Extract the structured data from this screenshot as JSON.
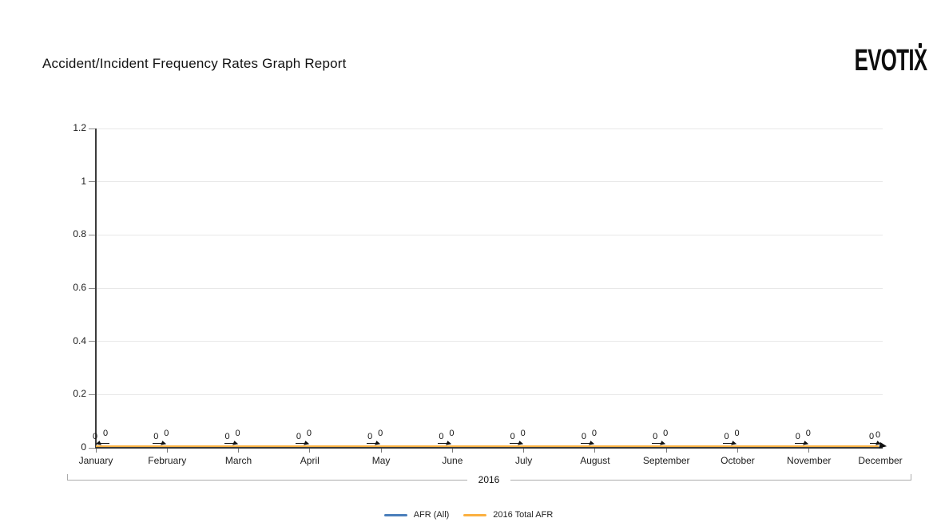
{
  "header": {
    "title": "Accident/Incident Frequency Rates Graph Report",
    "logo_text": "EVOTIX"
  },
  "chart_data": {
    "type": "line",
    "title": "Accident/Incident Frequency Rates Graph Report",
    "categories": [
      "January",
      "February",
      "March",
      "April",
      "May",
      "June",
      "July",
      "August",
      "September",
      "October",
      "November",
      "December"
    ],
    "x_group_label": "2016",
    "series": [
      {
        "name": "AFR (All)",
        "color": "#4a7ebb",
        "values": [
          0,
          0,
          0,
          0,
          0,
          0,
          0,
          0,
          0,
          0,
          0,
          0
        ]
      },
      {
        "name": "2016 Total AFR",
        "color": "#fbb040",
        "values": [
          0,
          0,
          0,
          0,
          0,
          0,
          0,
          0,
          0,
          0,
          0,
          0
        ]
      }
    ],
    "ylim": [
      0,
      1.2
    ],
    "yticks": [
      0,
      0.2,
      0.4,
      0.6,
      0.8,
      1,
      1.2
    ],
    "grid": true,
    "legend_position": "bottom",
    "data_labels_visible": true,
    "data_label_text": "0"
  }
}
